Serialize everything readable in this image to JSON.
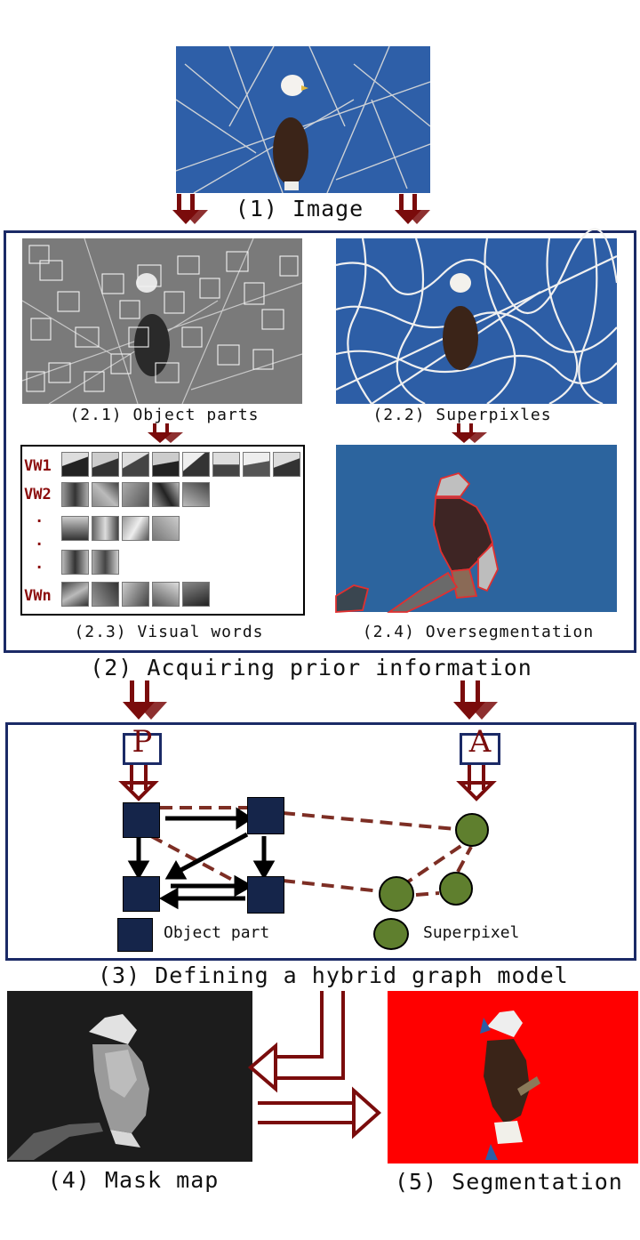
{
  "colors": {
    "frame": "#1b2a66",
    "arrow": "#7a0c0c",
    "node": "#15254a",
    "superpixel": "#5f7f2e",
    "dash": "#7d2e24",
    "accent": "#8b0c0c"
  },
  "steps": {
    "image": "(1) Image",
    "prior": "(2) Acquiring prior information",
    "graph": "(3) Defining a hybrid graph model",
    "mask": "(4) Mask map",
    "segmentation": "(5) Segmentation"
  },
  "substeps": {
    "object_parts": "(2.1) Object parts",
    "superpixels": "(2.2) Superpixles",
    "visual_words": "(2.3) Visual words",
    "oversegmentation": "(2.4) Oversegmentation"
  },
  "visual_words": {
    "rows": [
      "VW1",
      "VW2",
      ".",
      ".",
      ".",
      "VWn"
    ]
  },
  "graph": {
    "p_label": "P",
    "a_label": "A",
    "legend_object_part": "Object part",
    "legend_superpixel": "Superpixel"
  }
}
